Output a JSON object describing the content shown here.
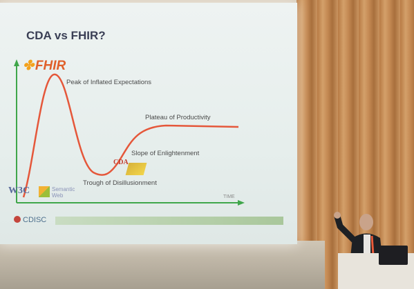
{
  "slide": {
    "title": "CDA vs FHIR?",
    "fhir_logo": "FHIR",
    "curve_labels": {
      "peak": "Peak of Inflated Expectations",
      "plateau": "Plateau of Productivity",
      "slope": "Slope of Enlightenment",
      "trough": "Trough of Disillusionment",
      "time_axis": "TIME"
    },
    "logos": {
      "cda": "CDA",
      "w3c": "W3C",
      "semantic_web_line1": "Semantic",
      "semantic_web_line2": "Web",
      "cdisc": "CDISC"
    }
  },
  "colors": {
    "slide_bg": "#e9f0ee",
    "curve": "#e5573a",
    "axis": "#3fa64a",
    "fhir": "#e0602a",
    "curtain": "#c48953"
  }
}
